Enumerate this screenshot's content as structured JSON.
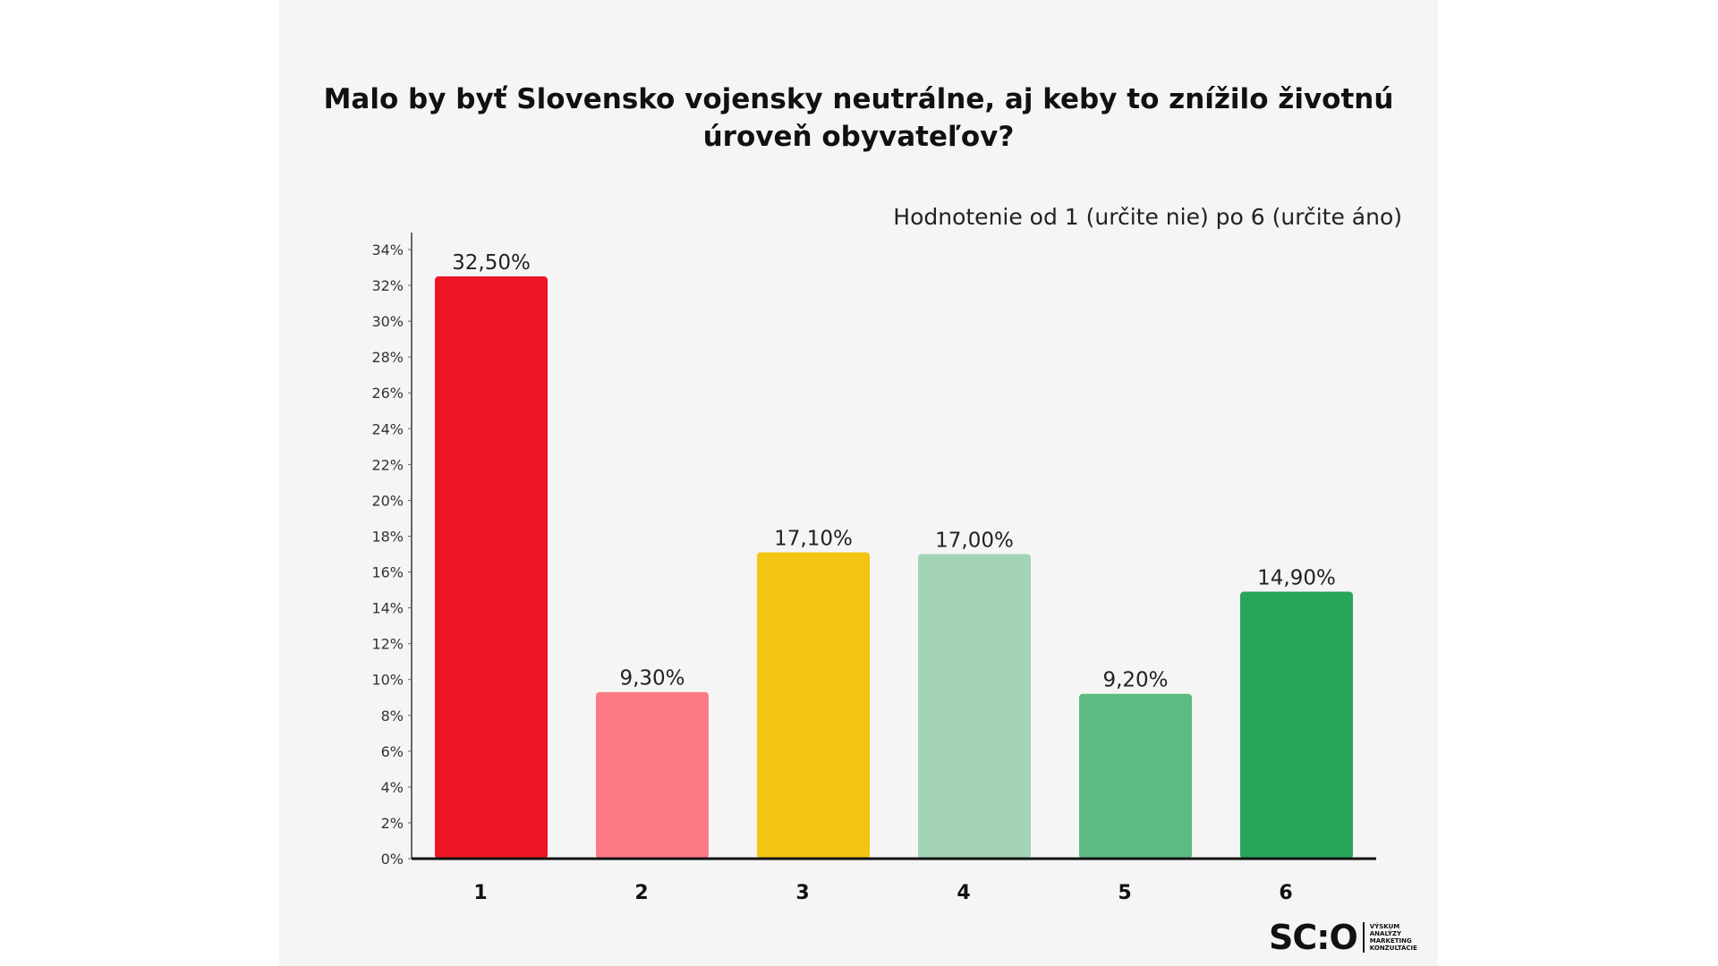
{
  "chart_data": {
    "type": "bar",
    "title": "Malo by byť Slovensko vojensky neutrálne, aj keby to znížilo životnú úroveň obyvateľov?",
    "subtitle": "Hodnotenie  od 1 (určite nie) po 6 (určite áno)",
    "categories": [
      "1",
      "2",
      "3",
      "4",
      "5",
      "6"
    ],
    "values": [
      32.5,
      9.3,
      17.1,
      17.0,
      9.2,
      14.9
    ],
    "value_labels": [
      "32,50%",
      "9,30%",
      "17,10%",
      "17,00%",
      "9,20%",
      "14,90%"
    ],
    "colors": [
      "#ed1625",
      "#fd7a84",
      "#f2c414",
      "#a3d4b4",
      "#5dba80",
      "#27a55a"
    ],
    "ylim": [
      0,
      34
    ],
    "yticks": [
      "0%",
      "2%",
      "4%",
      "6%",
      "8%",
      "10%",
      "12%",
      "14%",
      "16%",
      "18%",
      "20%",
      "22%",
      "24%",
      "26%",
      "28%",
      "30%",
      "32%",
      "34%"
    ],
    "xlabel": "",
    "ylabel": "",
    "grid": false
  },
  "logo": {
    "mark": "SC:O",
    "words": [
      "VÝSKUM",
      "ANALÝZY",
      "MARKETING",
      "KONZULTÁCIE"
    ]
  }
}
